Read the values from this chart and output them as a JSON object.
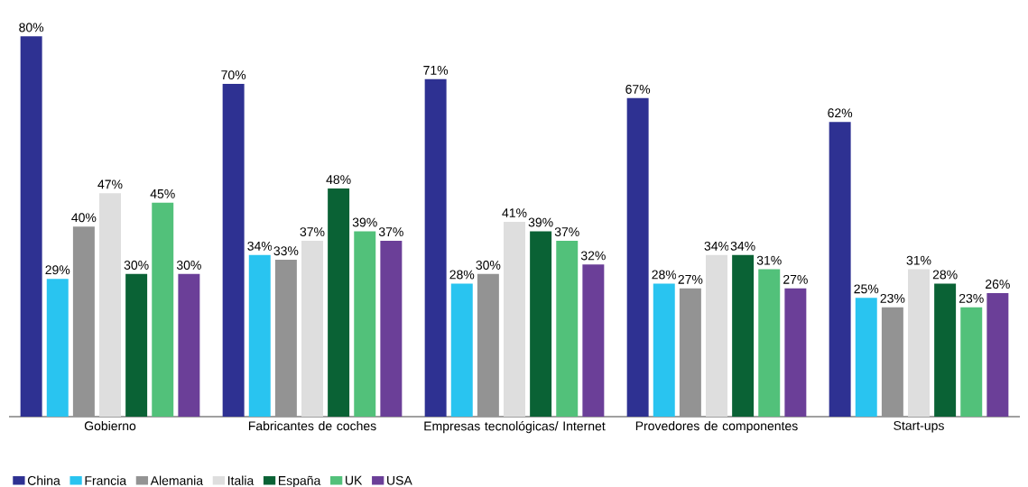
{
  "chart_data": {
    "type": "bar",
    "categories": [
      "Gobierno",
      "Fabricantes de coches",
      "Empresas tecnológicas/ Internet",
      "Provedores de componentes",
      "Start-ups"
    ],
    "series": [
      {
        "name": "China",
        "color": "#2e3192",
        "values": [
          80,
          70,
          71,
          67,
          62
        ],
        "value_labels": [
          "80%",
          "70%",
          "71%",
          "67%",
          "62%"
        ]
      },
      {
        "name": "Francia",
        "color": "#29c4f0",
        "values": [
          29,
          34,
          28,
          28,
          25
        ],
        "value_labels": [
          "29%",
          "34%",
          "28%",
          "28%",
          "25%"
        ]
      },
      {
        "name": "Alemania",
        "color": "#939393",
        "values": [
          40,
          33,
          30,
          27,
          23
        ],
        "value_labels": [
          "40%",
          "33%",
          "30%",
          "27%",
          "23%"
        ]
      },
      {
        "name": "Italia",
        "color": "#dedede",
        "values": [
          47,
          37,
          41,
          34,
          31
        ],
        "value_labels": [
          "47%",
          "37%",
          "41%",
          "34%",
          "31%"
        ]
      },
      {
        "name": "España",
        "color": "#0a6235",
        "values": [
          30,
          48,
          39,
          34,
          28
        ],
        "value_labels": [
          "30%",
          "48%",
          "39%",
          "34%",
          "28%"
        ]
      },
      {
        "name": "UK",
        "color": "#52c17a",
        "values": [
          45,
          39,
          37,
          31,
          23
        ],
        "value_labels": [
          "45%",
          "39%",
          "37%",
          "31%",
          "23%"
        ]
      },
      {
        "name": "USA",
        "color": "#6b3f98",
        "values": [
          30,
          37,
          32,
          27,
          26
        ],
        "value_labels": [
          "30%",
          "37%",
          "32%",
          "27%",
          "26%"
        ]
      }
    ],
    "legend": "bottom left"
  }
}
